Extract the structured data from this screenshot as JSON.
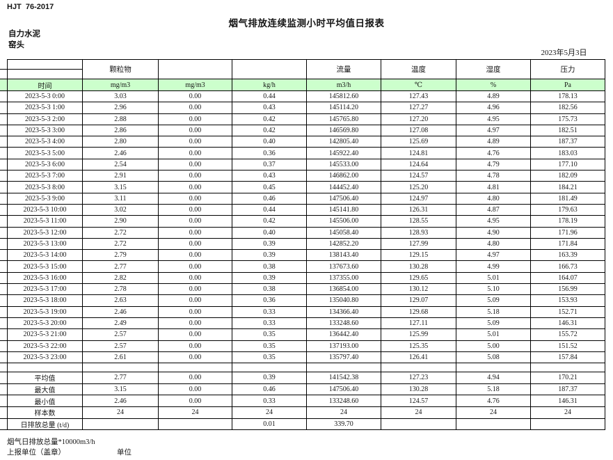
{
  "meta": {
    "standard_code": "HJT  76-2017",
    "title": "烟气排放连续监测小时平均值日报表",
    "company": "自力水泥",
    "monitoring_point": "窑头",
    "date": "2023年5月3日"
  },
  "colors": {
    "unit_row_green": "#ccffcc",
    "border": "#000000"
  },
  "table": {
    "pollutant_headers": [
      "颗粒物",
      "",
      "",
      "流量",
      "温度",
      "湿度",
      "压力"
    ],
    "time_label": "时间",
    "units": [
      "mg/m3",
      "mg/m3",
      "kg/h",
      "m3/h",
      "℃",
      "%",
      "Pa"
    ],
    "rows": [
      {
        "time": "2023-5-3 0:00",
        "values": [
          "3.03",
          "0.00",
          "0.44",
          "145812.60",
          "127.43",
          "4.89",
          "178.13"
        ]
      },
      {
        "time": "2023-5-3 1:00",
        "values": [
          "2.96",
          "0.00",
          "0.43",
          "145114.20",
          "127.27",
          "4.96",
          "182.56"
        ]
      },
      {
        "time": "2023-5-3 2:00",
        "values": [
          "2.88",
          "0.00",
          "0.42",
          "145765.80",
          "127.20",
          "4.95",
          "175.73"
        ]
      },
      {
        "time": "2023-5-3 3:00",
        "values": [
          "2.86",
          "0.00",
          "0.42",
          "146569.80",
          "127.08",
          "4.97",
          "182.51"
        ]
      },
      {
        "time": "2023-5-3 4:00",
        "values": [
          "2.80",
          "0.00",
          "0.40",
          "142805.40",
          "125.69",
          "4.89",
          "187.37"
        ]
      },
      {
        "time": "2023-5-3 5:00",
        "values": [
          "2.46",
          "0.00",
          "0.36",
          "145922.40",
          "124.81",
          "4.76",
          "183.03"
        ]
      },
      {
        "time": "2023-5-3 6:00",
        "values": [
          "2.54",
          "0.00",
          "0.37",
          "145533.00",
          "124.64",
          "4.79",
          "177.10"
        ]
      },
      {
        "time": "2023-5-3 7:00",
        "values": [
          "2.91",
          "0.00",
          "0.43",
          "146862.00",
          "124.57",
          "4.78",
          "182.09"
        ]
      },
      {
        "time": "2023-5-3 8:00",
        "values": [
          "3.15",
          "0.00",
          "0.45",
          "144452.40",
          "125.20",
          "4.81",
          "184.21"
        ]
      },
      {
        "time": "2023-5-3 9:00",
        "values": [
          "3.11",
          "0.00",
          "0.46",
          "147506.40",
          "124.97",
          "4.80",
          "181.49"
        ]
      },
      {
        "time": "2023-5-3 10:00",
        "values": [
          "3.02",
          "0.00",
          "0.44",
          "145141.80",
          "126.31",
          "4.87",
          "179.63"
        ]
      },
      {
        "time": "2023-5-3 11:00",
        "values": [
          "2.90",
          "0.00",
          "0.42",
          "145506.00",
          "128.55",
          "4.95",
          "178.19"
        ]
      },
      {
        "time": "2023-5-3 12:00",
        "values": [
          "2.72",
          "0.00",
          "0.40",
          "145058.40",
          "128.93",
          "4.90",
          "171.96"
        ]
      },
      {
        "time": "2023-5-3 13:00",
        "values": [
          "2.72",
          "0.00",
          "0.39",
          "142852.20",
          "127.99",
          "4.80",
          "171.84"
        ]
      },
      {
        "time": "2023-5-3 14:00",
        "values": [
          "2.79",
          "0.00",
          "0.39",
          "138143.40",
          "129.15",
          "4.97",
          "163.39"
        ]
      },
      {
        "time": "2023-5-3 15:00",
        "values": [
          "2.77",
          "0.00",
          "0.38",
          "137673.60",
          "130.28",
          "4.99",
          "166.73"
        ]
      },
      {
        "time": "2023-5-3 16:00",
        "values": [
          "2.82",
          "0.00",
          "0.39",
          "137355.00",
          "129.65",
          "5.01",
          "164.07"
        ]
      },
      {
        "time": "2023-5-3 17:00",
        "values": [
          "2.78",
          "0.00",
          "0.38",
          "136854.00",
          "130.12",
          "5.10",
          "156.99"
        ]
      },
      {
        "time": "2023-5-3 18:00",
        "values": [
          "2.63",
          "0.00",
          "0.36",
          "135040.80",
          "129.07",
          "5.09",
          "153.93"
        ]
      },
      {
        "time": "2023-5-3 19:00",
        "values": [
          "2.46",
          "0.00",
          "0.33",
          "134366.40",
          "129.68",
          "5.18",
          "152.71"
        ]
      },
      {
        "time": "2023-5-3 20:00",
        "values": [
          "2.49",
          "0.00",
          "0.33",
          "133248.60",
          "127.11",
          "5.09",
          "146.31"
        ]
      },
      {
        "time": "2023-5-3 21:00",
        "values": [
          "2.57",
          "0.00",
          "0.35",
          "136442.40",
          "125.99",
          "5.01",
          "155.72"
        ]
      },
      {
        "time": "2023-5-3 22:00",
        "values": [
          "2.57",
          "0.00",
          "0.35",
          "137193.00",
          "125.35",
          "5.00",
          "151.52"
        ]
      },
      {
        "time": "2023-5-3 23:00",
        "values": [
          "2.61",
          "0.00",
          "0.35",
          "135797.40",
          "126.41",
          "5.08",
          "157.84"
        ]
      }
    ],
    "summary": [
      {
        "label": "平均值",
        "values": [
          "2.77",
          "0.00",
          "0.39",
          "141542.38",
          "127.23",
          "4.94",
          "170.21"
        ]
      },
      {
        "label": "最大值",
        "values": [
          "3.15",
          "0.00",
          "0.46",
          "147506.40",
          "130.28",
          "5.18",
          "187.37"
        ]
      },
      {
        "label": "最小值",
        "values": [
          "2.46",
          "0.00",
          "0.33",
          "133248.60",
          "124.57",
          "4.76",
          "146.31"
        ]
      },
      {
        "label": "样本数",
        "values": [
          "24",
          "24",
          "24",
          "24",
          "24",
          "24",
          "24"
        ]
      },
      {
        "label": "日排放总量 (t/d)",
        "values": [
          "",
          "",
          "0.01",
          "339.70",
          "",
          "",
          ""
        ]
      }
    ]
  },
  "footer": {
    "note": "烟气日排放总量*10000m3/h",
    "report_unit_label": "上报单位（盖章）",
    "unit_label": "单位"
  }
}
